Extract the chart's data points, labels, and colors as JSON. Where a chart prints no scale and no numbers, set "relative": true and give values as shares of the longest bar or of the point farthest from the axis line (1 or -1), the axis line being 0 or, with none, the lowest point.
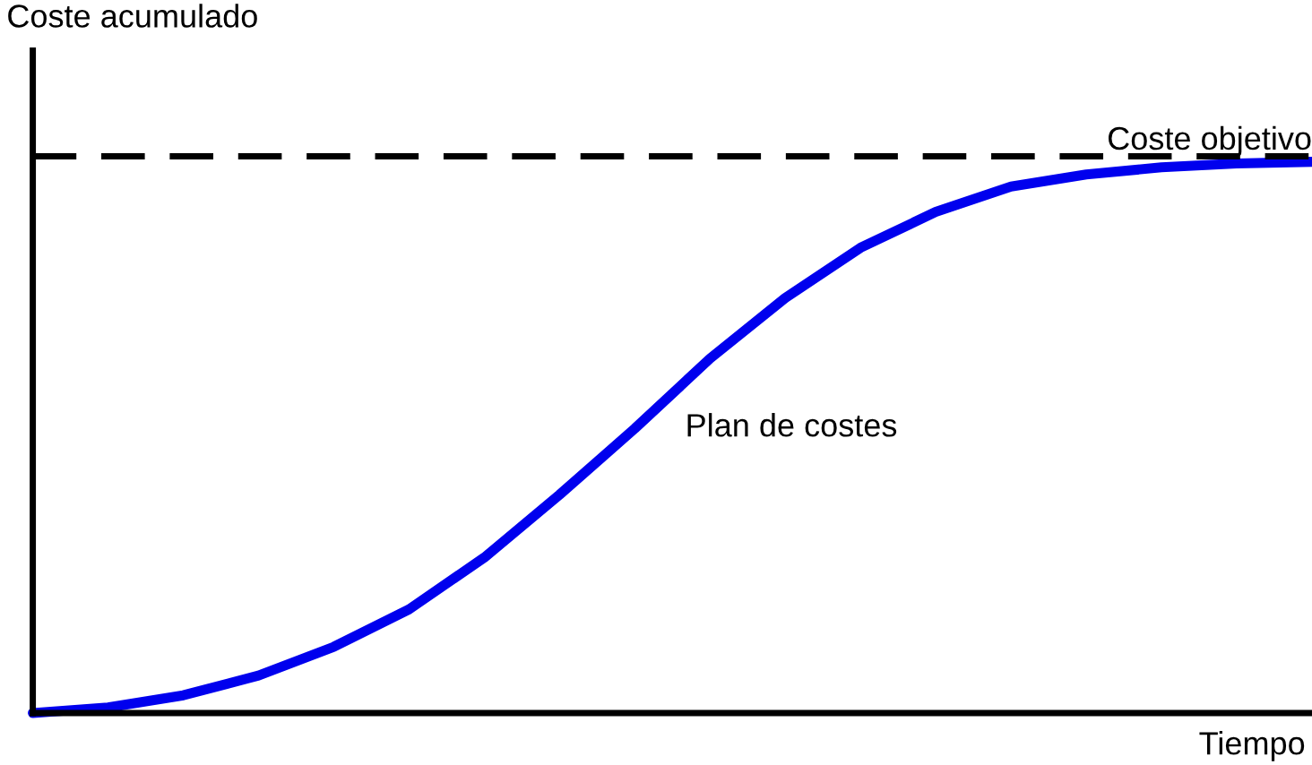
{
  "chart_data": {
    "type": "line",
    "relative": true,
    "ylabel": "Coste acumulado",
    "xlabel": "Tiempo",
    "categories": [
      null,
      null,
      null,
      null,
      null,
      null,
      null,
      null,
      null,
      null,
      null,
      null,
      null,
      null,
      null,
      null,
      null,
      null
    ],
    "series": [
      {
        "color": "#0000ee",
        "values": [
          0,
          0.01,
          0.032,
          0.068,
          0.12,
          0.188,
          0.282,
          0.396,
          0.516,
          0.643,
          0.753,
          0.844,
          0.909,
          0.955,
          0.977,
          0.99,
          0.997,
          1
        ]
      }
    ],
    "ref_lines": [
      {
        "axis": "y",
        "value": 1.01,
        "label": "Coste objetivo",
        "color": "#000000",
        "line_style": "dashed"
      }
    ],
    "annotations": [
      "Plan de costes"
    ],
    "legend": false,
    "marker": "none",
    "line_style": "solid"
  }
}
